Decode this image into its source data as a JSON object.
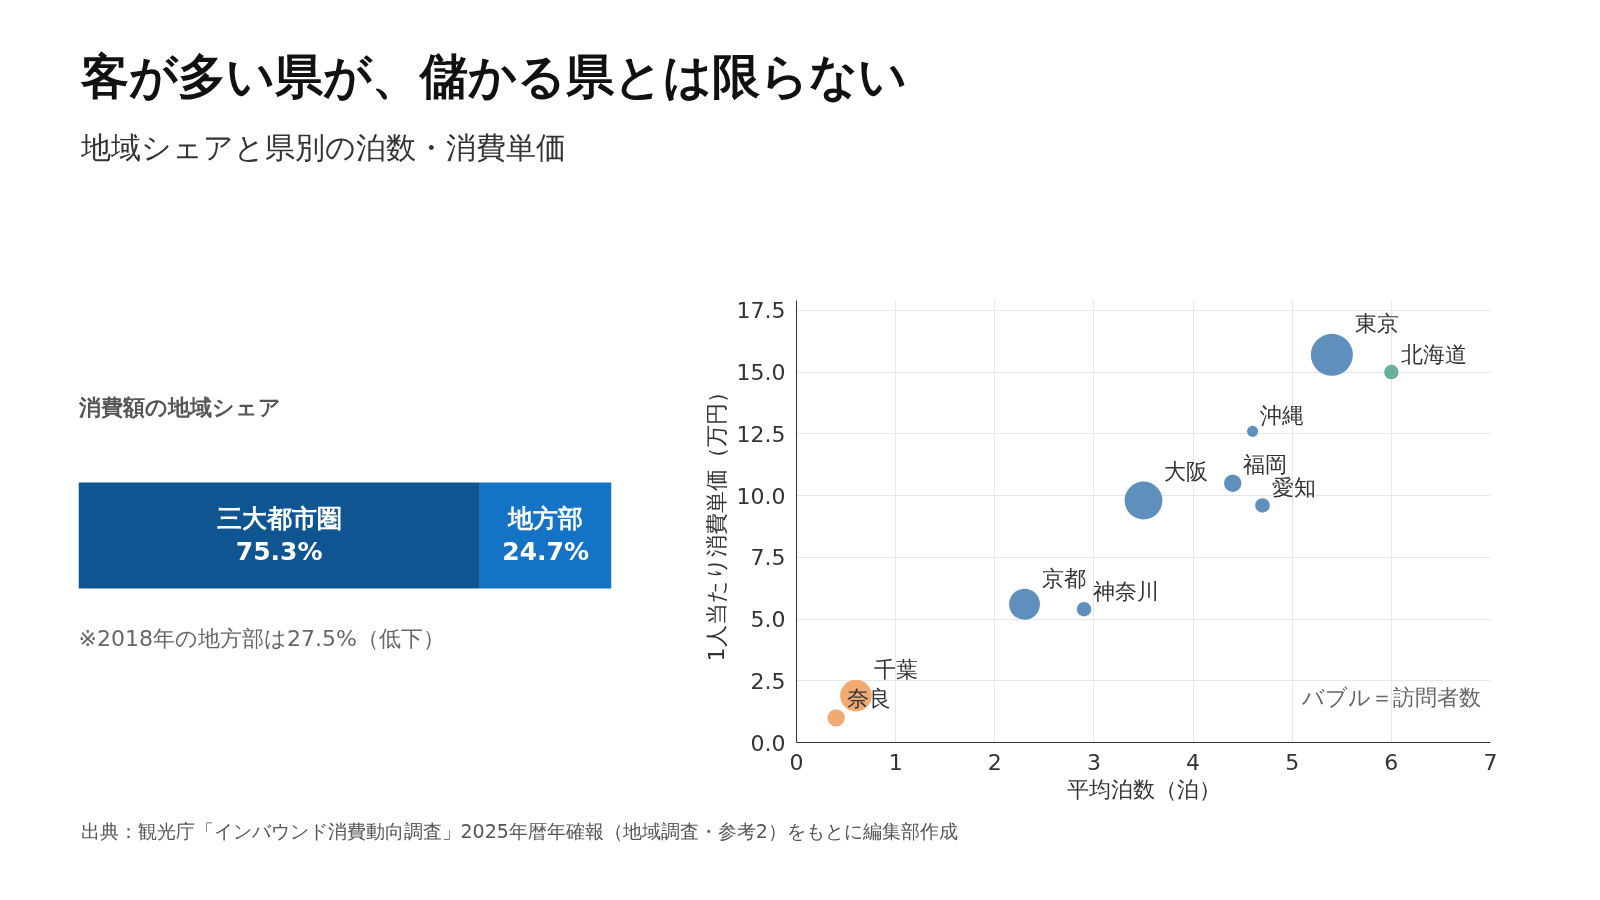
{
  "chart_data": [
    {
      "type": "other",
      "title": "客が多い県が、儲かる県とは限らない",
      "subtitle": "地域シェアと県別の泊数・消費単価",
      "annotations": [
        "出典：観光庁「インバウンド消費動向調査」2025年暦年確報（地域調査・参考2）をもとに編集部作成"
      ]
    },
    {
      "type": "bar",
      "orientation": "horizontal",
      "stacked": true,
      "title": "消費額の地域シェア",
      "categories": [
        null
      ],
      "series": [
        {
          "name": "三大都市圏",
          "color": "#0f5592",
          "values": [
            75.3
          ],
          "value_labels": [
            "75.3%"
          ]
        },
        {
          "name": "地方部",
          "color": "#1573c5",
          "values": [
            24.7
          ],
          "value_labels": [
            "24.7%"
          ]
        }
      ],
      "annotations": [
        "※2018年の地方部は27.5%（低下）"
      ]
    },
    {
      "type": "bubble",
      "xlabel": "平均泊数（泊）",
      "ylabel": "1人当たり消費単価（万円）",
      "xlim": [
        0,
        7
      ],
      "xticks": [
        0,
        1,
        2,
        3,
        4,
        5,
        6,
        7
      ],
      "ylim": [
        0,
        17.9
      ],
      "yticks": [
        {
          "value": 0,
          "label": "0.0"
        },
        {
          "value": 2.5,
          "label": "2.5"
        },
        {
          "value": 5,
          "label": "5.0"
        },
        {
          "value": 7.5,
          "label": "7.5"
        },
        {
          "value": 10,
          "label": "10.0"
        },
        {
          "value": 12.5,
          "label": "12.5"
        },
        {
          "value": 15,
          "label": "15.0"
        },
        {
          "value": 17.5,
          "label": "17.5"
        }
      ],
      "grid": true,
      "series": [
        {
          "name": "東京",
          "color": "#5f8fbd",
          "x": [
            5.4
          ],
          "values": [
            15.7
          ],
          "sizes": [
            1
          ]
        },
        {
          "name": "北海道",
          "color": "#6bb09d",
          "x": [
            6.0
          ],
          "values": [
            15.0
          ],
          "sizes": [
            0.12
          ]
        },
        {
          "name": "沖縄",
          "color": "#5f8fbd",
          "x": [
            4.6
          ],
          "values": [
            12.6
          ],
          "sizes": [
            0.07
          ]
        },
        {
          "name": "福岡",
          "color": "#5f8fbd",
          "x": [
            4.4
          ],
          "values": [
            10.5
          ],
          "sizes": [
            0.17
          ]
        },
        {
          "name": "愛知",
          "color": "#5f8fbd",
          "x": [
            4.7
          ],
          "values": [
            9.6
          ],
          "sizes": [
            0.12
          ]
        },
        {
          "name": "大阪",
          "color": "#5f8fbd",
          "x": [
            3.5
          ],
          "values": [
            9.8
          ],
          "sizes": [
            0.81
          ]
        },
        {
          "name": "神奈川",
          "color": "#5f8fbd",
          "x": [
            2.9
          ],
          "values": [
            5.4
          ],
          "sizes": [
            0.12
          ]
        },
        {
          "name": "京都",
          "color": "#5f8fbd",
          "x": [
            2.3
          ],
          "values": [
            5.6
          ],
          "sizes": [
            0.54
          ]
        },
        {
          "name": "千葉",
          "color": "#f1aa72",
          "x": [
            0.6
          ],
          "values": [
            1.9
          ],
          "sizes": [
            0.57
          ]
        },
        {
          "name": "奈良",
          "color": "#f1aa72",
          "x": [
            0.4
          ],
          "values": [
            1.0
          ],
          "sizes": [
            0.17
          ]
        }
      ],
      "annotations": [
        "バブル＝訪問者数"
      ]
    }
  ]
}
